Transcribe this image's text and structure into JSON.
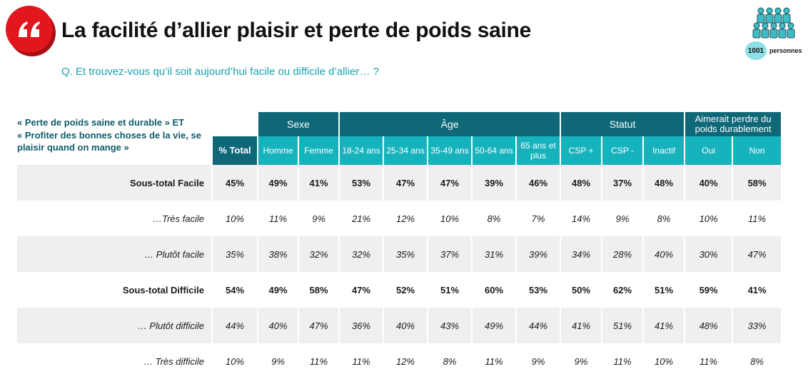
{
  "header": {
    "title": "La facilité d’allier plaisir et perte de poids saine",
    "question": "Q. Et trouvez-vous qu’il soit aujourd’hui facile ou difficile d’allier… ?",
    "sample_count": "1001",
    "sample_label": "personnes",
    "accent_color": "#e2161d",
    "teal_color": "#0e6878"
  },
  "intro": {
    "line1": "« Perte de poids saine et durable » ET",
    "line2": "« Profiter des bonnes choses de la vie, se plaisir quand on mange »"
  },
  "table": {
    "groups": [
      "Sexe",
      "Âge",
      "Statut",
      "Aimerait perdre du poids durablement"
    ],
    "columns": [
      "% Total",
      "Homme",
      "Femme",
      "18-24 ans",
      "25-34 ans",
      "35-49 ans",
      "50-64 ans",
      "65 ans et plus",
      "CSP +",
      "CSP -",
      "Inactif",
      "Oui",
      "Non"
    ],
    "rows": [
      {
        "label": "Sous-total Facile",
        "values": [
          "45%",
          "49%",
          "41%",
          "53%",
          "47%",
          "47%",
          "39%",
          "46%",
          "48%",
          "37%",
          "48%",
          "40%",
          "58%"
        ]
      },
      {
        "label": "…Très facile",
        "values": [
          "10%",
          "11%",
          "9%",
          "21%",
          "12%",
          "10%",
          "8%",
          "7%",
          "14%",
          "9%",
          "8%",
          "10%",
          "11%"
        ]
      },
      {
        "label": "… Plutôt facile",
        "values": [
          "35%",
          "38%",
          "32%",
          "32%",
          "35%",
          "37%",
          "31%",
          "39%",
          "34%",
          "28%",
          "40%",
          "30%",
          "47%"
        ]
      },
      {
        "label": "Sous-total Difficile",
        "values": [
          "54%",
          "49%",
          "58%",
          "47%",
          "52%",
          "51%",
          "60%",
          "53%",
          "50%",
          "62%",
          "51%",
          "59%",
          "41%"
        ]
      },
      {
        "label": "… Plutôt difficile",
        "values": [
          "44%",
          "40%",
          "47%",
          "36%",
          "40%",
          "43%",
          "49%",
          "44%",
          "41%",
          "51%",
          "41%",
          "48%",
          "33%"
        ]
      },
      {
        "label": "… Très difficile",
        "values": [
          "10%",
          "9%",
          "11%",
          "11%",
          "12%",
          "8%",
          "11%",
          "9%",
          "9%",
          "11%",
          "10%",
          "11%",
          "8%"
        ]
      }
    ]
  }
}
